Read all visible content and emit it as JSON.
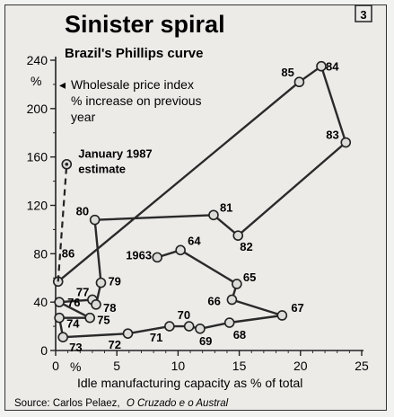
{
  "header": {
    "title": "Sinister spiral",
    "subtitle": "Brazil's Phillips curve",
    "badge": "3"
  },
  "source_text": "Source: Carlos Pelaez,",
  "source_title": "O Cruzado e o Austral",
  "chart_data": {
    "type": "scatter",
    "title": "Sinister spiral",
    "subtitle": "Brazil's Phillips curve",
    "ylabel": "%",
    "ylabel_note": [
      "Wholesale price index",
      "% increase on previous",
      "year"
    ],
    "xlabel": "Idle manufacturing capacity as % of total",
    "x_unit": "%",
    "xlim": [
      0,
      25
    ],
    "ylim": [
      0,
      240
    ],
    "xticks": [
      0,
      5,
      10,
      15,
      20,
      25
    ],
    "yticks": [
      0,
      40,
      80,
      120,
      160,
      200,
      240
    ],
    "xtick_labels": [
      "0",
      "5",
      "10",
      "15",
      "20",
      "25"
    ],
    "ytick_labels": [
      "0",
      "40",
      "80",
      "120",
      "160",
      "200",
      "240"
    ],
    "series": [
      {
        "points": [
          {
            "label": "1963",
            "x": 8.3,
            "y": 77
          },
          {
            "label": "64",
            "x": 10.2,
            "y": 83
          },
          {
            "label": "65",
            "x": 14.8,
            "y": 55
          },
          {
            "label": "66",
            "x": 14.4,
            "y": 42
          },
          {
            "label": "67",
            "x": 18.5,
            "y": 29
          },
          {
            "label": "68",
            "x": 14.2,
            "y": 23
          },
          {
            "label": "69",
            "x": 11.8,
            "y": 18
          },
          {
            "label": "70",
            "x": 10.9,
            "y": 20
          },
          {
            "label": "71",
            "x": 9.3,
            "y": 20
          },
          {
            "label": "72",
            "x": 5.9,
            "y": 14
          },
          {
            "label": "73",
            "x": 0.6,
            "y": 11
          },
          {
            "label": "74",
            "x": 0.3,
            "y": 27
          },
          {
            "label": "75",
            "x": 2.8,
            "y": 27
          },
          {
            "label": "76",
            "x": 0.3,
            "y": 40
          },
          {
            "label": "77",
            "x": 3.0,
            "y": 42
          },
          {
            "label": "78",
            "x": 3.3,
            "y": 38
          },
          {
            "label": "79",
            "x": 3.7,
            "y": 56
          },
          {
            "label": "80",
            "x": 3.2,
            "y": 108
          },
          {
            "label": "81",
            "x": 12.9,
            "y": 112
          },
          {
            "label": "82",
            "x": 14.9,
            "y": 95
          },
          {
            "label": "83",
            "x": 23.7,
            "y": 172
          },
          {
            "label": "84",
            "x": 21.7,
            "y": 235
          },
          {
            "label": "85",
            "x": 19.9,
            "y": 222
          },
          {
            "label": "86",
            "x": 0.2,
            "y": 57
          }
        ]
      }
    ],
    "estimate": {
      "label": "January 1987",
      "label2": "estimate",
      "x": 0.9,
      "y": 154,
      "from": "86"
    }
  }
}
